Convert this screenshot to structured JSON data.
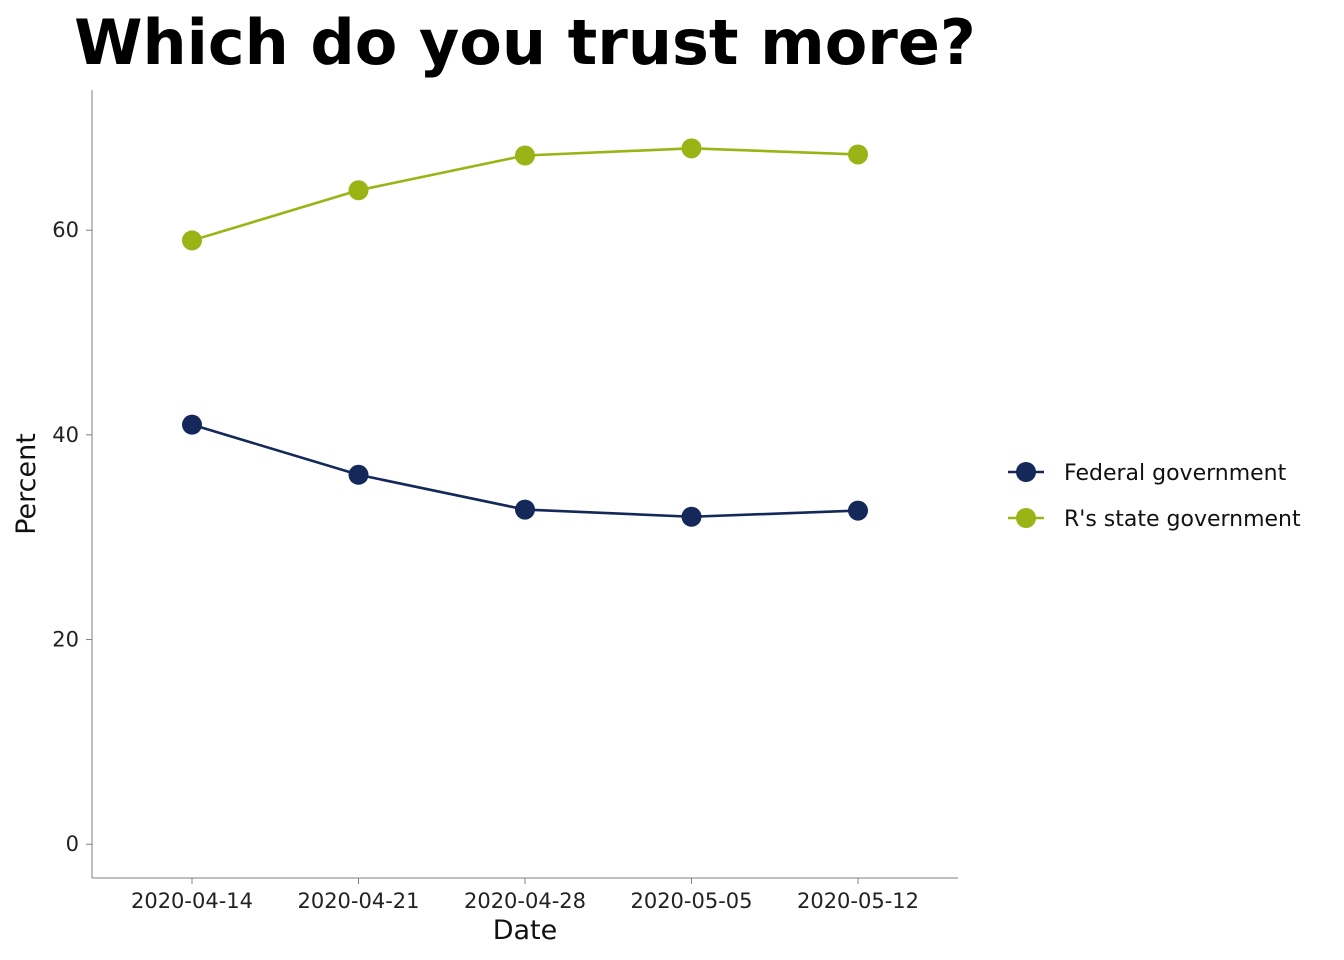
{
  "chart_data": {
    "type": "line",
    "title": "Which do you trust more?",
    "xlabel": "Date",
    "ylabel": "Percent",
    "x": [
      "2020-04-14",
      "2020-04-21",
      "2020-04-28",
      "2020-05-05",
      "2020-05-12"
    ],
    "ylim": [
      -3.3,
      73.7
    ],
    "yticks": [
      0,
      20,
      40,
      60
    ],
    "grid": false,
    "legend_position": "right",
    "series": [
      {
        "name": "Federal government",
        "color": "#14295a",
        "values": [
          41.0,
          36.1,
          32.7,
          32.0,
          32.6
        ]
      },
      {
        "name": "R's state government",
        "color": "#99b414",
        "values": [
          59.0,
          63.9,
          67.3,
          68.0,
          67.4
        ]
      }
    ]
  }
}
